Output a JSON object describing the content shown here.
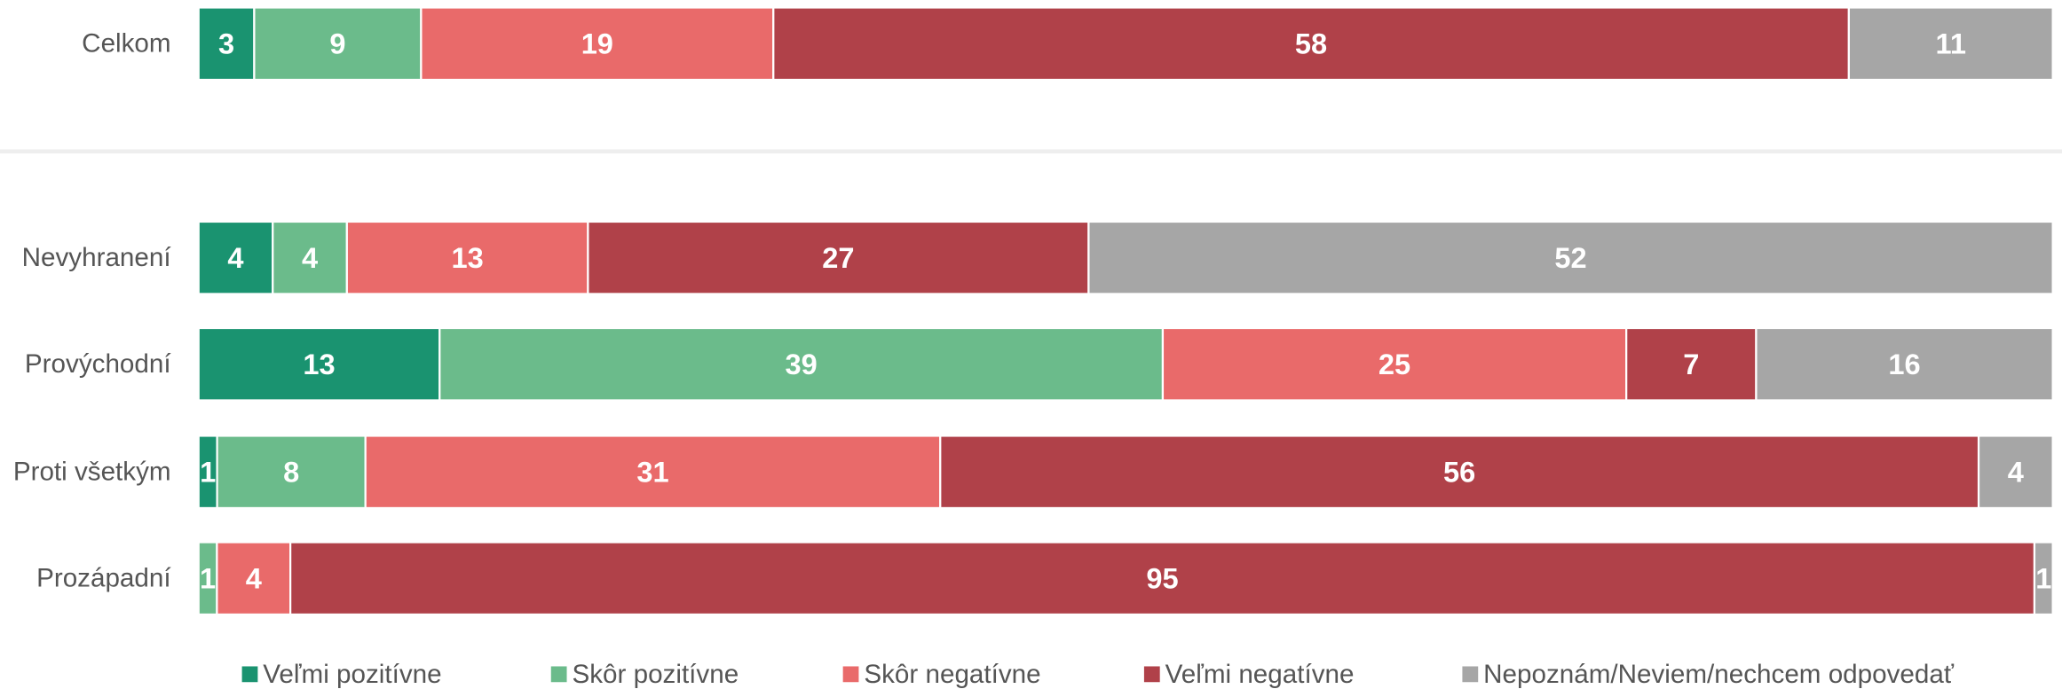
{
  "chart_data": {
    "type": "bar",
    "orientation": "horizontal",
    "stacked": "percent",
    "categories": [
      "Celkom",
      "Nevyhranení",
      "Provýchodní",
      "Proti všetkým",
      "Prozápadní"
    ],
    "series": [
      {
        "name": "Veľmi pozitívne",
        "color": "#1a9370",
        "values": [
          3,
          4,
          13,
          1,
          0
        ]
      },
      {
        "name": "Skôr pozitívne",
        "color": "#6bbb8b",
        "values": [
          9,
          4,
          39,
          8,
          1
        ]
      },
      {
        "name": "Skôr negatívne",
        "color": "#e96a6a",
        "values": [
          19,
          13,
          25,
          31,
          4
        ]
      },
      {
        "name": "Veľmi negatívne",
        "color": "#b04149",
        "values": [
          58,
          27,
          7,
          56,
          95
        ]
      },
      {
        "name": "Nepoznám/Neviem/nechcem odpovedať",
        "color": "#a6a6a6",
        "values": [
          11,
          52,
          16,
          4,
          1
        ]
      }
    ],
    "legend": "bottom"
  }
}
